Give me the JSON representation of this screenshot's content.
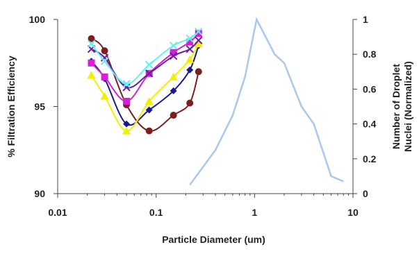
{
  "chart_data": {
    "type": "line",
    "title": "",
    "xlabel": "Particle Diameter (um)",
    "ylabel_left": "% Filtration Efficiency",
    "ylabel_right_lines": [
      "Number of Droplet",
      "Nuclei (Normalized)"
    ],
    "x_scale": "log",
    "xlim": [
      0.01,
      10
    ],
    "ylim_left": [
      90,
      100
    ],
    "ylim_right": [
      0,
      1
    ],
    "x_ticks": [
      0.01,
      0.1,
      1,
      10
    ],
    "x_tick_labels": [
      "0.01",
      "0.1",
      "1",
      "10"
    ],
    "y_left_ticks": [
      90,
      95,
      100
    ],
    "y_left_tick_labels": [
      "90",
      "95",
      "100"
    ],
    "y_right_ticks": [
      0,
      0.2,
      0.4,
      0.6,
      0.8,
      1
    ],
    "y_right_tick_labels": [
      "0",
      "0.2",
      "0.4",
      "0.6",
      "0.8",
      "1"
    ],
    "grid": false,
    "legend": "none",
    "series": [
      {
        "axis": "left",
        "color": "#7b1f1f",
        "marker": "circle",
        "x": [
          0.022,
          0.03,
          0.05,
          0.085,
          0.15,
          0.22,
          0.27
        ],
        "y": [
          98.9,
          98.2,
          95.1,
          93.6,
          94.5,
          95.2,
          97.0
        ]
      },
      {
        "axis": "left",
        "color": "#1a1a8c",
        "marker": "diamond",
        "x": [
          0.022,
          0.03,
          0.05,
          0.085,
          0.15,
          0.22,
          0.27
        ],
        "y": [
          97.6,
          96.6,
          94.0,
          94.8,
          95.9,
          97.1,
          98.5
        ]
      },
      {
        "axis": "left",
        "color": "#f0f000",
        "marker": "triangle",
        "x": [
          0.022,
          0.03,
          0.05,
          0.085,
          0.15,
          0.22,
          0.27
        ],
        "y": [
          96.8,
          95.6,
          93.6,
          95.3,
          96.7,
          97.7,
          98.6
        ]
      },
      {
        "axis": "left",
        "color": "#d61fd6",
        "marker": "square",
        "x": [
          0.022,
          0.03,
          0.05,
          0.085,
          0.15,
          0.22,
          0.27
        ],
        "y": [
          97.5,
          96.7,
          95.3,
          96.9,
          98.1,
          98.7,
          99.2
        ]
      },
      {
        "axis": "left",
        "color": "#6a1fa0",
        "marker": "x",
        "x": [
          0.022,
          0.03,
          0.05,
          0.085,
          0.15,
          0.22,
          0.27
        ],
        "y": [
          98.3,
          97.8,
          96.1,
          96.9,
          97.9,
          98.3,
          98.8
        ]
      },
      {
        "axis": "left",
        "color": "#5ff0f0",
        "marker": "x",
        "x": [
          0.022,
          0.03,
          0.05,
          0.085,
          0.15,
          0.22,
          0.27
        ],
        "y": [
          98.6,
          97.6,
          96.3,
          97.4,
          98.5,
          98.9,
          99.3
        ]
      },
      {
        "axis": "right",
        "color": "#a9c7ef",
        "marker": "none",
        "x": [
          0.22,
          0.4,
          0.6,
          0.8,
          1.05,
          1.6,
          2.0,
          3.0,
          4.0,
          6.0,
          8.0
        ],
        "y": [
          0.05,
          0.25,
          0.45,
          0.67,
          1.0,
          0.8,
          0.75,
          0.5,
          0.4,
          0.1,
          0.07
        ]
      }
    ]
  }
}
